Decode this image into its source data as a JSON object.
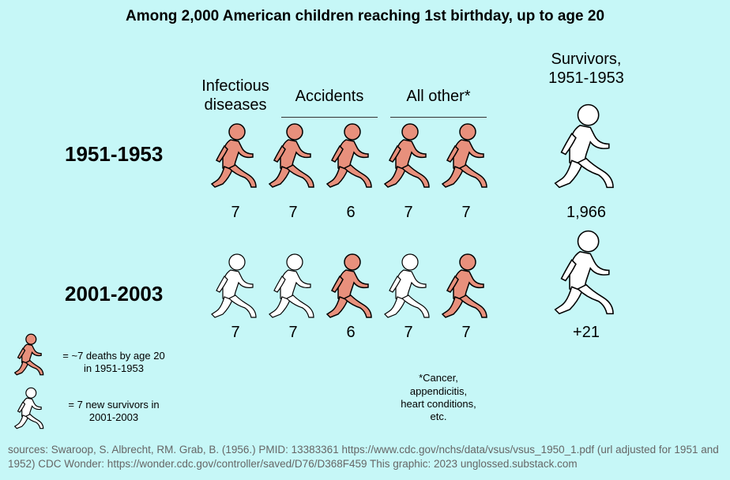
{
  "title": "Among 2,000 American children reaching 1st birthday, up to age 20",
  "columns": {
    "infectious": "Infectious diseases",
    "accidents": "Accidents",
    "other": "All other*",
    "survivors_line1": "Survivors,",
    "survivors_line2": "1951-1953"
  },
  "rows": [
    {
      "label": "1951-1953",
      "values": [
        "7",
        "7",
        "6",
        "7",
        "7"
      ],
      "survivors": "1,966",
      "figures": [
        "death",
        "death",
        "death",
        "death",
        "death"
      ]
    },
    {
      "label": "2001-2003",
      "values": [
        "7",
        "7",
        "6",
        "7",
        "7"
      ],
      "survivors": "+21",
      "figures": [
        "survivor",
        "survivor",
        "death",
        "survivor",
        "death"
      ]
    }
  ],
  "legend": {
    "death_line1": "= ~7 deaths by age 20",
    "death_line2": "in 1951-1953",
    "survivor_line1": "= 7 new survivors in",
    "survivor_line2": "2001-2003"
  },
  "footnote": {
    "line1": "*Cancer,",
    "line2": "appendicitis,",
    "line3": "heart conditions,",
    "line4": "etc."
  },
  "sources": "sources: Swaroop, S. Albrecht, RM. Grab, B. (1956.) PMID: 13383361 https://www.cdc.gov/nchs/data/vsus/vsus_1950_1.pdf (url adjusted for 1951 and 1952) CDC Wonder: https://wonder.cdc.gov/controller/saved/D76/D368F459 This graphic: 2023 unglossed.substack.com",
  "colors": {
    "background": "#c6f7f7",
    "death": "#e8907c",
    "survivor": "#ffffff",
    "outline": "#000000"
  }
}
